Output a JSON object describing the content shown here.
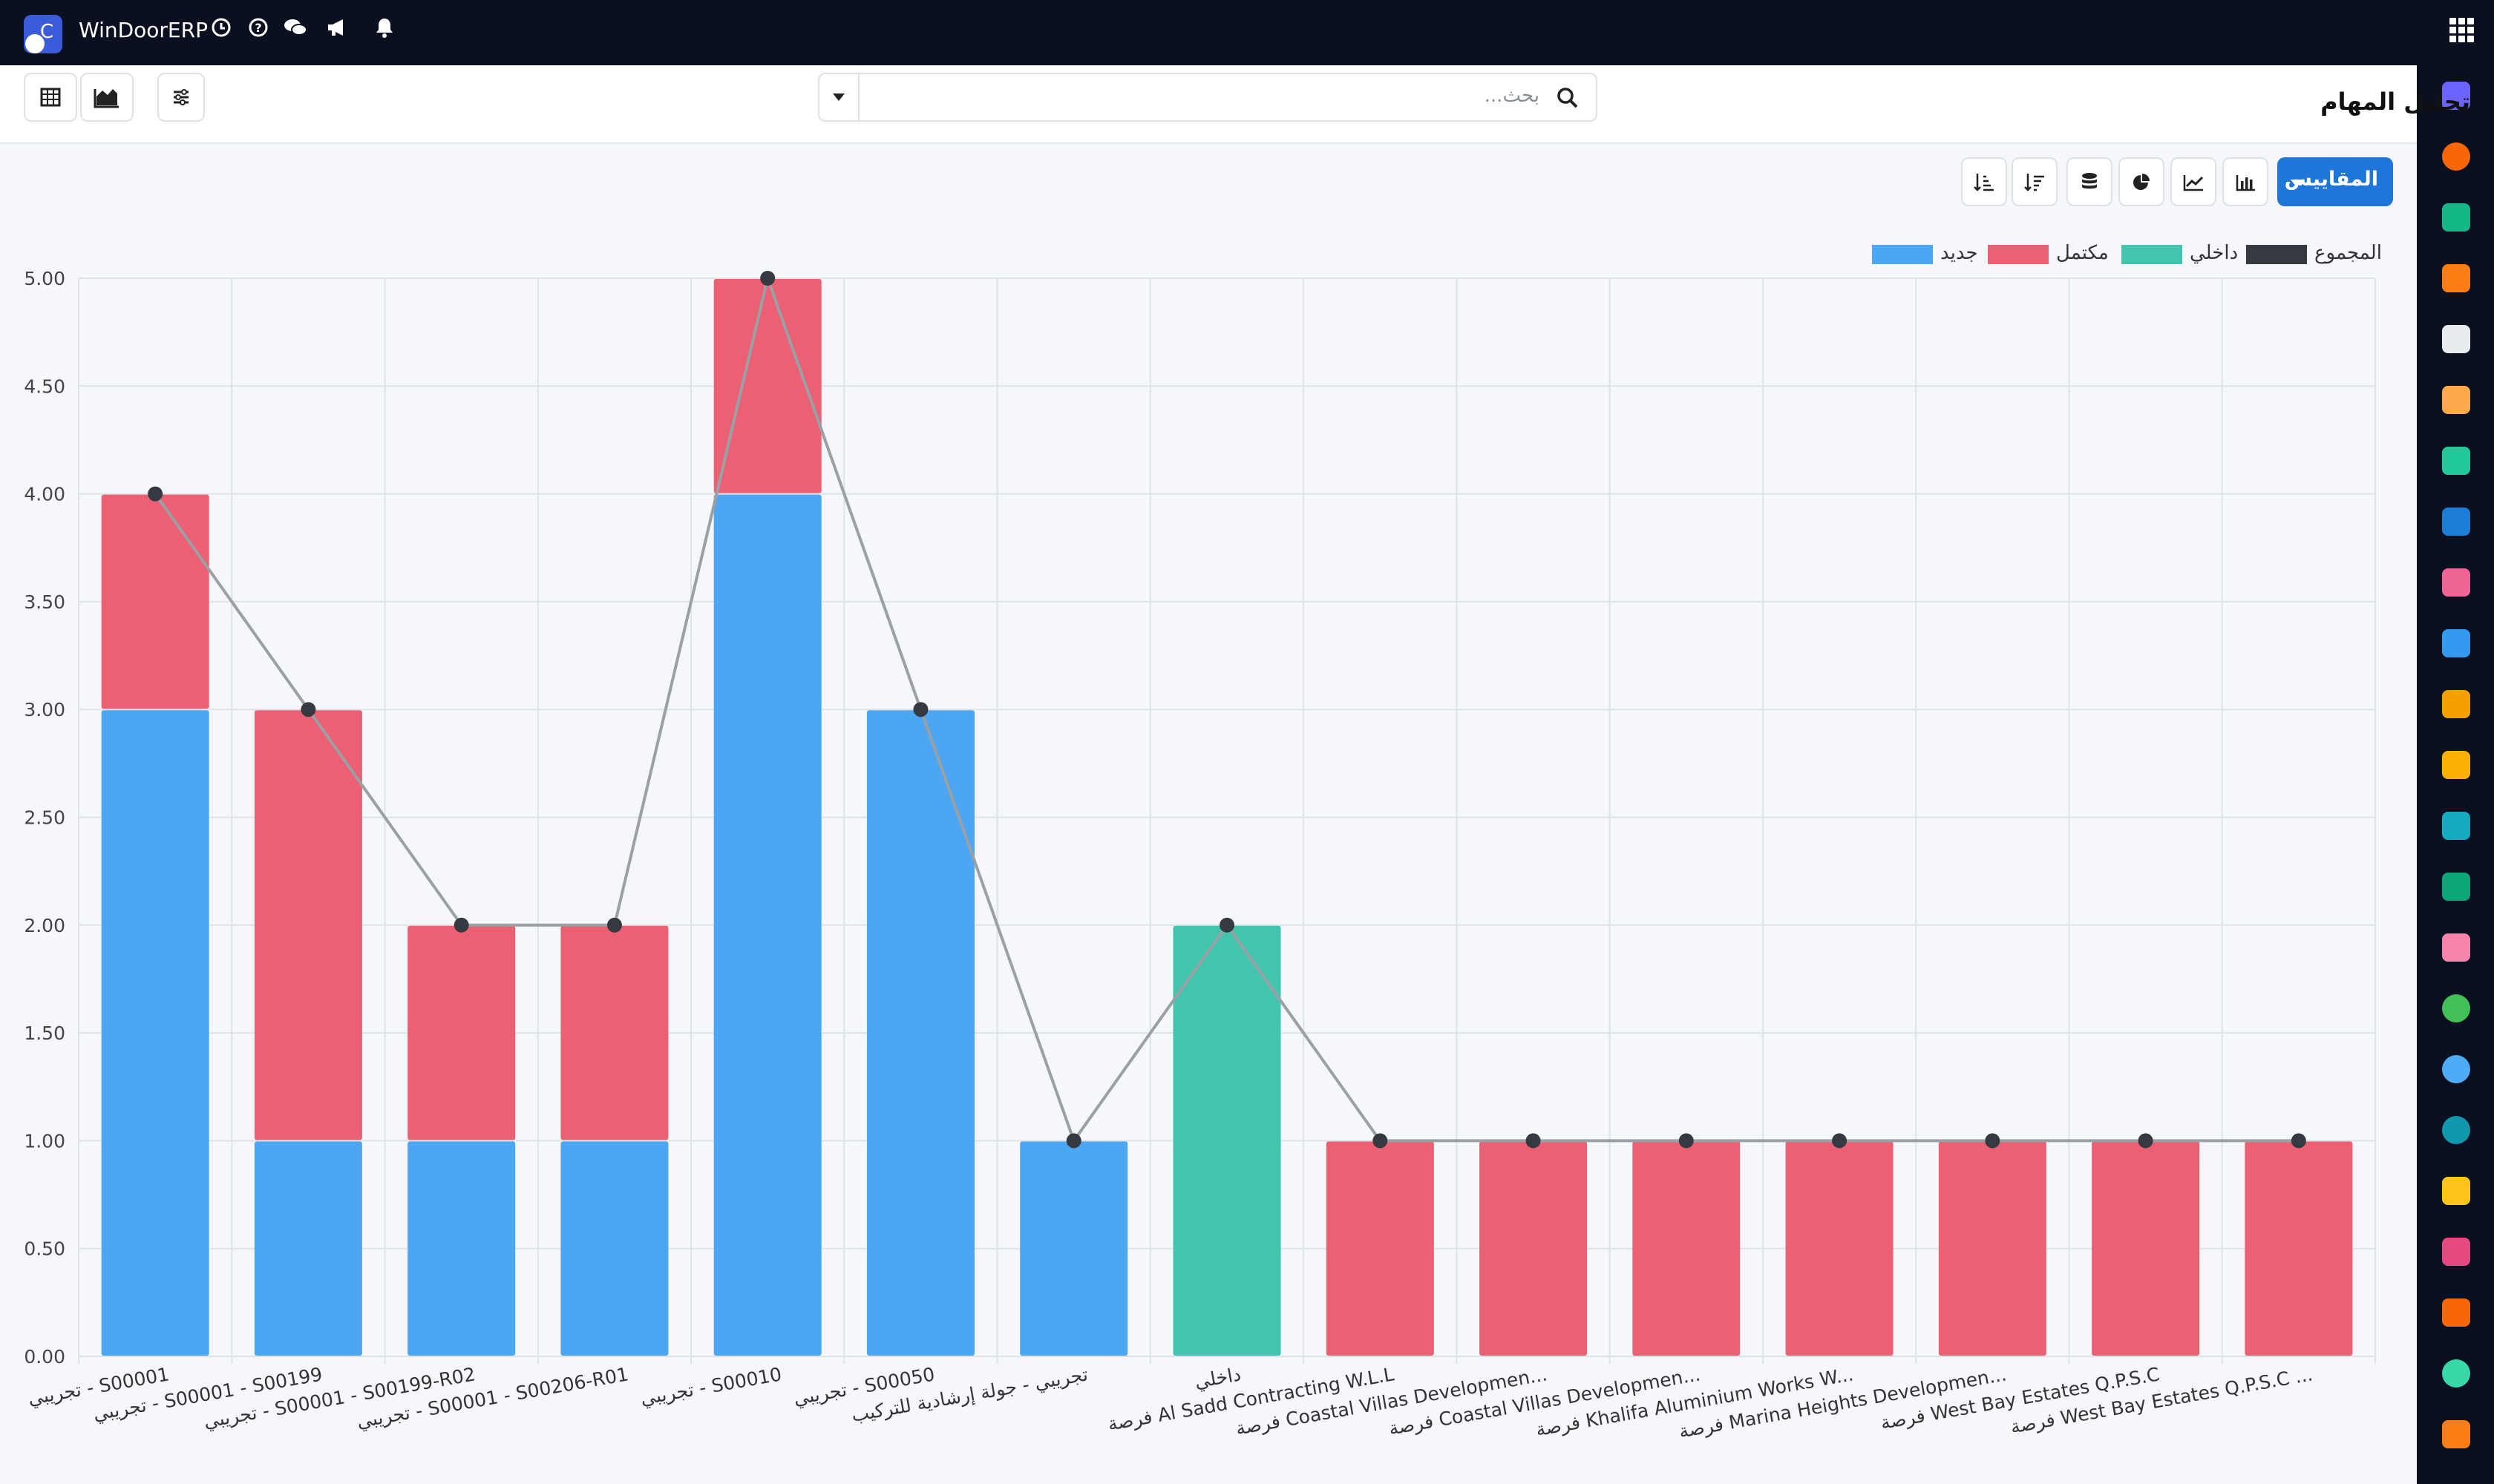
{
  "app": {
    "name": "WinDoorERP"
  },
  "page": {
    "title": "تحليل المهام"
  },
  "search": {
    "placeholder": "بحث..."
  },
  "toolbar": {
    "measures_label": "المقاييس"
  },
  "colors": {
    "new": "#4da6f2",
    "done": "#eb6073",
    "internal": "#43c4ae",
    "total": "#343a40",
    "line": "#9aa0a6",
    "primary": "#1f75d8"
  },
  "icons": {
    "top": [
      "clock-icon",
      "help-icon",
      "chat-icon",
      "megaphone-icon",
      "bell-icon",
      "apps-grid-icon"
    ],
    "panel": [
      "table-view-icon",
      "area-chart-icon",
      "filter-settings-icon",
      "search-icon"
    ],
    "view": [
      "bar-chart-icon",
      "line-chart-icon",
      "pie-chart-icon",
      "stacked-icon",
      "sort-descending-icon",
      "sort-ascending-icon"
    ]
  },
  "chart_data": {
    "type": "bar",
    "stacked": true,
    "ylim": [
      0,
      5
    ],
    "yticks": [
      "0.00",
      "0.50",
      "1.00",
      "1.50",
      "2.00",
      "2.50",
      "3.00",
      "3.50",
      "4.00",
      "4.50",
      "5.00"
    ],
    "grid": true,
    "legend_position": "top-right",
    "categories": [
      "تجريبي - S00001",
      "تجريبي - S00001 - S00199",
      "تجريبي - S00001 - S00199-R02",
      "تجريبي - S00001 - S00206-R01",
      "تجريبي - S00010",
      "تجريبي - S00050",
      "تجريبي - جولة إرشادية للتركيب",
      "داخلي",
      "فرصة Al Sadd Contracting W.L.L",
      "فرصة Coastal Villas Developmen...",
      "فرصة Coastal Villas Developmen...",
      "فرصة Khalifa Aluminium Works W...",
      "فرصة Marina Heights Developmen...",
      "فرصة West Bay Estates Q.P.S.C",
      "فرصة West Bay Estates Q.P.S.C ..."
    ],
    "series": [
      {
        "name": "جديد",
        "color": "#4da6f2",
        "values": [
          3,
          1,
          1,
          1,
          4,
          3,
          1,
          0,
          0,
          0,
          0,
          0,
          0,
          0,
          0
        ]
      },
      {
        "name": "مكتمل",
        "color": "#eb6073",
        "values": [
          1,
          2,
          1,
          1,
          1,
          0,
          0,
          0,
          1,
          1,
          1,
          1,
          1,
          1,
          1
        ]
      },
      {
        "name": "داخلي",
        "color": "#43c4ae",
        "values": [
          0,
          0,
          0,
          0,
          0,
          0,
          0,
          2,
          0,
          0,
          0,
          0,
          0,
          0,
          0
        ]
      },
      {
        "name": "المجموع",
        "color": "#343a40",
        "type": "line",
        "values": [
          4,
          3,
          2,
          2,
          5,
          3,
          1,
          2,
          1,
          1,
          1,
          1,
          1,
          1,
          1
        ]
      }
    ]
  }
}
